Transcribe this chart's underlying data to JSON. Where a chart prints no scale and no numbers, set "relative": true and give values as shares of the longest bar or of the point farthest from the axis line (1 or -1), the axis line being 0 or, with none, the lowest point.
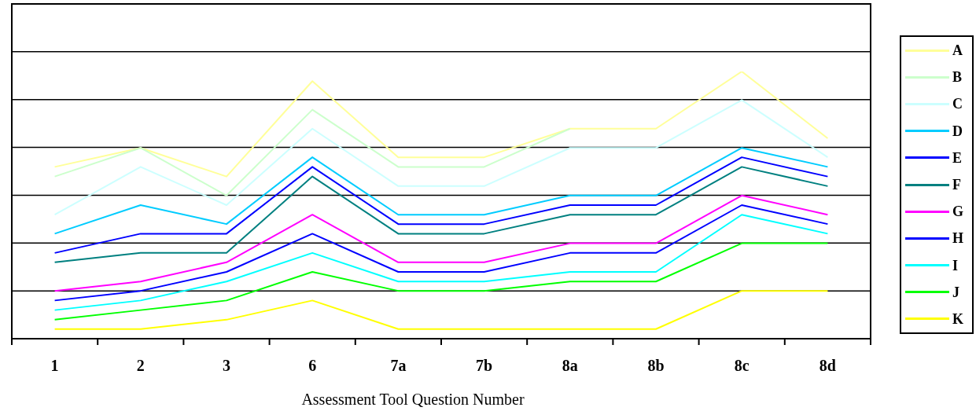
{
  "chart_data": {
    "type": "line",
    "relative": true,
    "xlabel": "Assessment Tool Question Number",
    "categories": [
      "1",
      "2",
      "3",
      "6",
      "7a",
      "7b",
      "8a",
      "8b",
      "8c",
      "8d"
    ],
    "series": [
      {
        "name": "A",
        "color": "#ffff99",
        "values": [
          0.643,
          0.714,
          0.607,
          0.964,
          0.679,
          0.679,
          0.786,
          0.786,
          1,
          0.75
        ]
      },
      {
        "name": "B",
        "color": "#ccffcc",
        "values": [
          0.607,
          0.714,
          0.536,
          0.857,
          0.643,
          0.643,
          0.786,
          null,
          null,
          null
        ]
      },
      {
        "name": "C",
        "color": "#ccffff",
        "values": [
          0.464,
          0.643,
          0.5,
          0.786,
          0.571,
          0.571,
          0.714,
          0.714,
          0.893,
          0.679
        ]
      },
      {
        "name": "D",
        "color": "#00ccff",
        "values": [
          0.393,
          0.5,
          0.429,
          0.679,
          0.464,
          0.464,
          0.536,
          0.536,
          0.714,
          0.643
        ]
      },
      {
        "name": "E",
        "color": "#0000ff",
        "values": [
          0.321,
          0.393,
          0.393,
          0.643,
          0.429,
          0.429,
          0.5,
          0.5,
          0.679,
          0.607
        ]
      },
      {
        "name": "F",
        "color": "#008080",
        "values": [
          0.286,
          0.321,
          0.321,
          0.607,
          0.393,
          0.393,
          0.464,
          0.464,
          0.643,
          0.571
        ]
      },
      {
        "name": "G",
        "color": "#ff00ff",
        "values": [
          0.179,
          0.214,
          0.286,
          0.464,
          0.286,
          0.286,
          0.357,
          0.357,
          0.536,
          0.464
        ]
      },
      {
        "name": "H",
        "color": "#0000ff",
        "values": [
          0.143,
          0.179,
          0.25,
          0.393,
          0.25,
          0.25,
          0.321,
          0.321,
          0.5,
          0.429
        ]
      },
      {
        "name": "I",
        "color": "#00ffff",
        "values": [
          0.107,
          0.143,
          0.214,
          0.321,
          0.214,
          0.214,
          0.25,
          0.25,
          0.464,
          0.393
        ]
      },
      {
        "name": "J",
        "color": "#00ff00",
        "values": [
          0.071,
          0.107,
          0.143,
          0.25,
          0.179,
          0.179,
          0.214,
          0.214,
          0.357,
          0.357
        ]
      },
      {
        "name": "K",
        "color": "#ffff00",
        "values": [
          0.036,
          0.036,
          0.071,
          0.143,
          0.036,
          0.036,
          0.036,
          0.036,
          0.179,
          0.179
        ]
      }
    ],
    "grid": "y",
    "legend": "right",
    "marker": "none",
    "line_style": "solid"
  }
}
